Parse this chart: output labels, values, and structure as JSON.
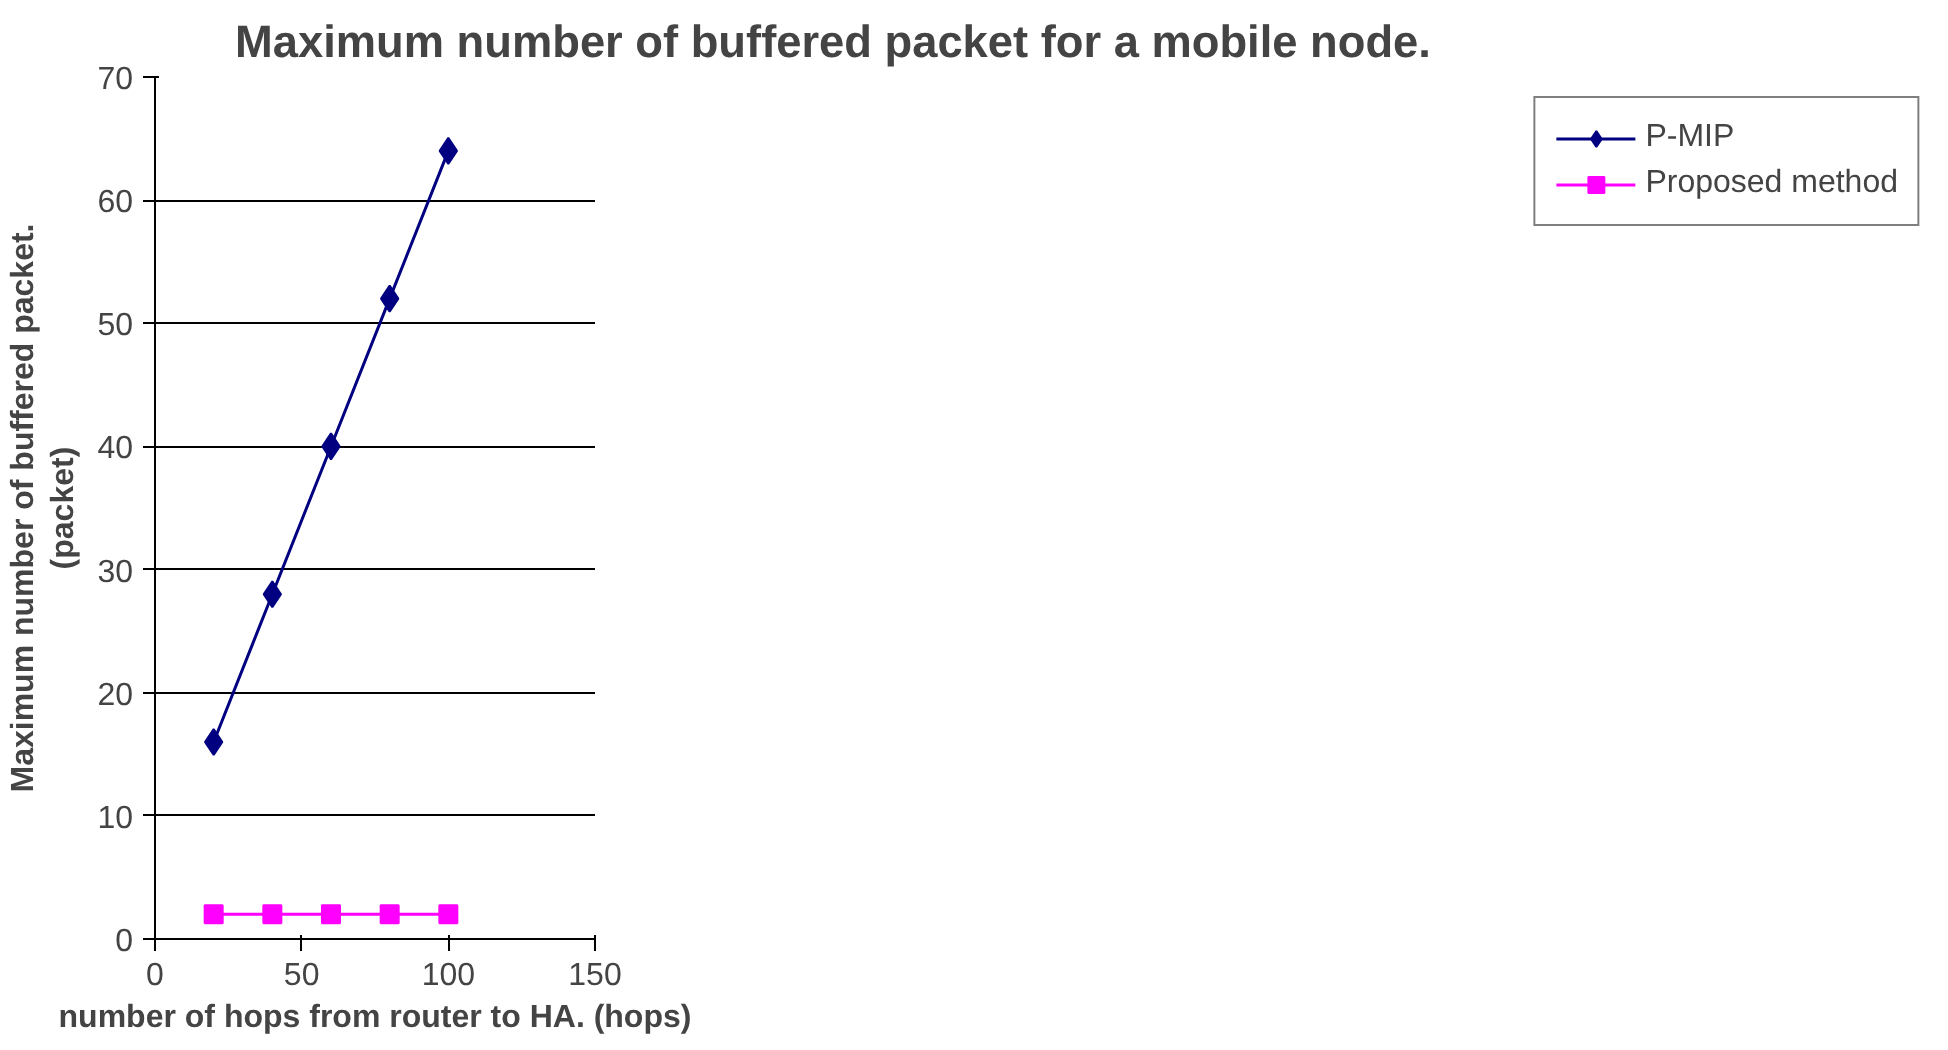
{
  "chart_data": {
    "type": "line",
    "title": "Maximum number of buffered packet  for a mobile node.",
    "xlabel": "number of hops from router to HA. (hops)",
    "ylabel": "Maximum number of buffered packet.\n(packet)",
    "x": [
      20,
      40,
      60,
      80,
      100
    ],
    "series": [
      {
        "name": "P-MIP",
        "color": "#000080",
        "marker": "diamond",
        "values": [
          16,
          28,
          40,
          52,
          64
        ]
      },
      {
        "name": "Proposed method",
        "color": "#ff00ff",
        "marker": "square",
        "values": [
          2,
          2,
          2,
          2,
          2
        ]
      }
    ],
    "xlim": [
      0,
      150
    ],
    "xticks": [
      0,
      50,
      100,
      150
    ],
    "ylim": [
      0,
      70
    ],
    "yticks": [
      0,
      10,
      20,
      30,
      40,
      50,
      60,
      70
    ],
    "grid": "y",
    "legend": "right",
    "line_style": "solid"
  }
}
